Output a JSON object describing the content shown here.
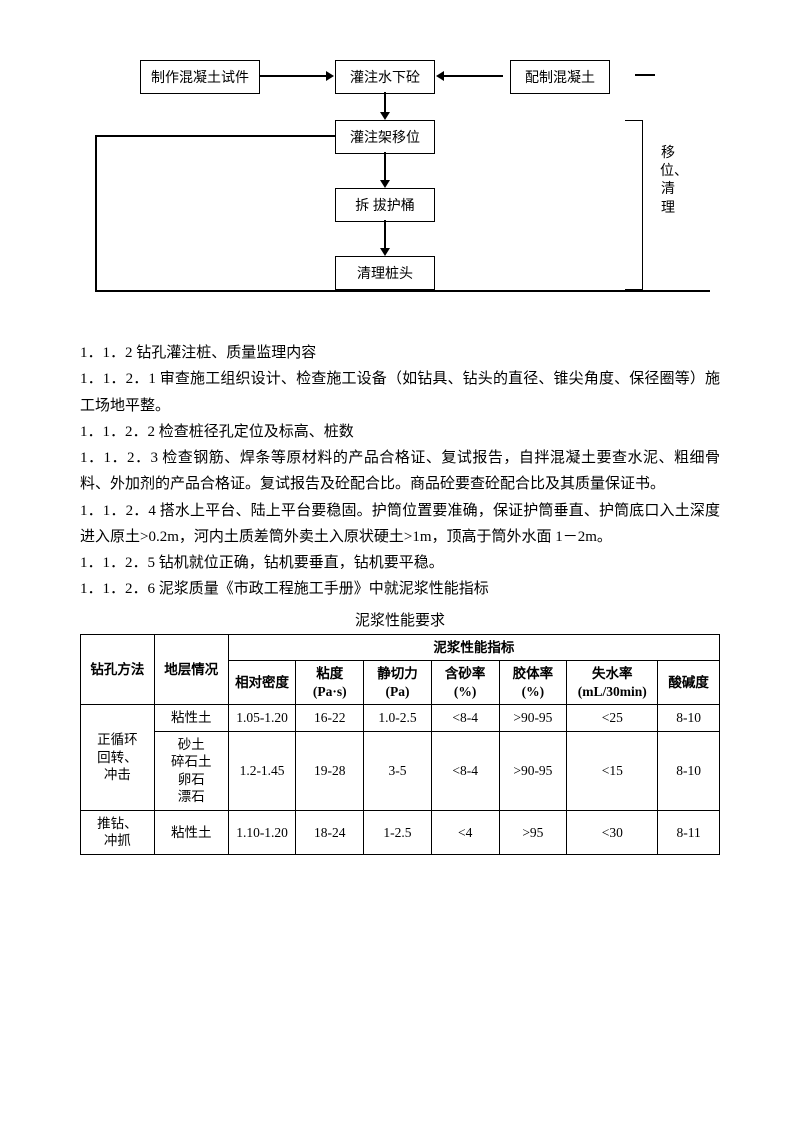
{
  "flowchart": {
    "nodes": {
      "n1": "制作混凝土试件",
      "n2": "灌注水下砼",
      "n3": "配制混凝土",
      "n4": "灌注架移位",
      "n5": "拆 拔护桶",
      "n6": "清理桩头"
    },
    "side_label": "移位、清理",
    "box_border": "#000000",
    "bg": "#ffffff",
    "fontsize": 14
  },
  "paragraphs": {
    "p1": "1．1．2 钻孔灌注桩、质量监理内容",
    "p2": "1．1．2．1 审查施工组织设计、检查施工设备（如钻具、钻头的直径、锥尖角度、保径圈等）施工场地平整。",
    "p3": "1．1．2．2 检查桩径孔定位及标高、桩数",
    "p4": "1．1．2．3 检查钢筋、焊条等原材料的产品合格证、复试报告，自拌混凝土要查水泥、粗细骨料、外加剂的产品合格证。复试报告及砼配合比。商品砼要查砼配合比及其质量保证书。",
    "p5": "1．1．2．4 搭水上平台、陆上平台要稳固。护筒位置要准确，保证护筒垂直、护筒底口入土深度进入原土>0.2m，河内土质差筒外卖土入原状硬土>1m，顶高于筒外水面 1－2m。",
    "p6": "1．1．2．5 钻机就位正确，钻机要垂直，钻机要平稳。",
    "p7": "1．1．2．6 泥浆质量《市政工程施工手册》中就泥浆性能指标"
  },
  "table": {
    "title": "泥浆性能要求",
    "header_group": "泥浆性能指标",
    "columns": {
      "c1": "钻孔方法",
      "c2": "地层情况",
      "c3": "相对密度",
      "c4": "粘度\n(Pa·s)",
      "c5": "静切力\n(Pa)",
      "c6": "含砂率\n(%)",
      "c7": "胶体率\n(%)",
      "c8": "失水率\n(mL/30min)",
      "c9": "酸碱度"
    },
    "rows": [
      {
        "method": "正循环\n回转、\n冲击",
        "soil": "粘性土",
        "density": "1.05-1.20",
        "visc": "16-22",
        "shear": "1.0-2.5",
        "sand": "<8-4",
        "gel": ">90-95",
        "loss": "<25",
        "ph": "8-10"
      },
      {
        "method": "",
        "soil": "砂土\n碎石土\n卵石\n漂石",
        "density": "1.2-1.45",
        "visc": "19-28",
        "shear": "3-5",
        "sand": "<8-4",
        "gel": ">90-95",
        "loss": "<15",
        "ph": "8-10"
      },
      {
        "method": "推钻、\n冲抓",
        "soil": "粘性土",
        "density": "1.10-1.20",
        "visc": "18-24",
        "shear": "1-2.5",
        "sand": "<4",
        "gel": ">95",
        "loss": "<30",
        "ph": "8-11"
      }
    ],
    "border_color": "#000000",
    "fontsize": 13.5
  },
  "colors": {
    "text": "#000000",
    "background": "#ffffff"
  }
}
